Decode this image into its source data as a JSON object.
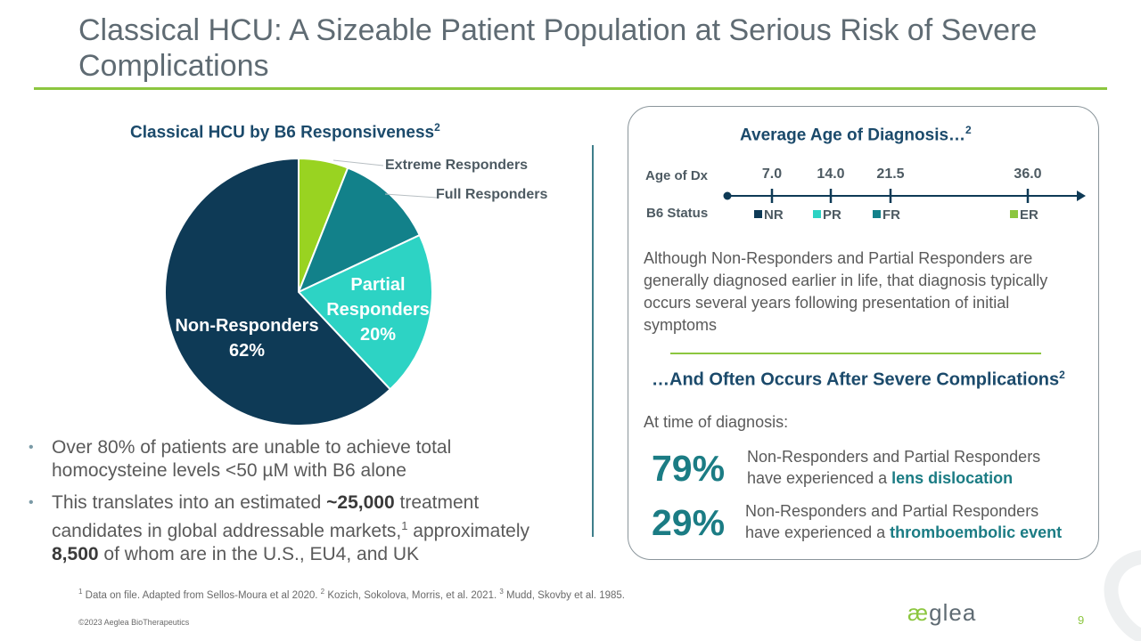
{
  "title": "Classical HCU: A Sizeable Patient Population at Serious Risk of Severe Complications",
  "pie_section": {
    "title": "Classical HCU by B6 Responsiveness",
    "title_sup": "2",
    "labels": {
      "non_responders": "Non-Responders",
      "non_responders_pct": "62%",
      "partial_responders_line1": "Partial",
      "partial_responders_line2": "Responders",
      "partial_responders_pct": "20%",
      "extreme_responders": "Extreme Responders",
      "full_responders": "Full Responders"
    }
  },
  "chart_data": {
    "type": "pie",
    "title": "Classical HCU by B6 Responsiveness",
    "categories": [
      "Extreme Responders",
      "Full Responders",
      "Partial Responders",
      "Non-Responders"
    ],
    "values": [
      6,
      12,
      20,
      62
    ],
    "colors": [
      "#99d321",
      "#12818a",
      "#2dd3c4",
      "#0e3a56"
    ],
    "start_angle_deg": 0,
    "direction": "clockwise"
  },
  "bullets": {
    "b1": "Over 80% of patients are unable to achieve total homocysteine levels <50 µM with B6 alone",
    "b2_a": "This translates into an estimated ",
    "b2_b": "~25,000",
    "b2_c": " treatment candidates in global addressable markets,",
    "b2_sup": "1",
    "b2_d": " approximately ",
    "b2_e": "8,500",
    "b2_f": " of whom are in the U.S., EU4, and UK"
  },
  "card": {
    "title": "Average Age of Diagnosis…",
    "title_sup": "2",
    "age_label": "Age of Dx",
    "status_label": "B6 Status",
    "timeline": [
      {
        "age": "7.0",
        "status": "NR",
        "color": "#0e3a56"
      },
      {
        "age": "14.0",
        "status": "PR",
        "color": "#2dd3c4"
      },
      {
        "age": "21.5",
        "status": "FR",
        "color": "#12818a"
      },
      {
        "age": "36.0",
        "status": "ER",
        "color": "#8cc63f"
      }
    ],
    "paragraph": "Although Non-Responders and Partial Responders are generally diagnosed earlier in life, that diagnosis typically occurs several years following presentation of initial symptoms",
    "sub_title": "…And Often Occurs After Severe Complications",
    "sub_title_sup": "2",
    "at_dx": "At time of diagnosis:",
    "stats": [
      {
        "value": "79%",
        "line1": "Non-Responders and Partial Responders",
        "line2_prefix": "have experienced a ",
        "highlight": "lens dislocation"
      },
      {
        "value": "29%",
        "line1": "Non-Responders and Partial Responders",
        "line2_prefix": "have experienced a ",
        "highlight": "thromboembolic event"
      }
    ]
  },
  "footer": {
    "fn1_sup": "1",
    "fn1": " Data on file. Adapted from Sellos-Moura et al 2020. ",
    "fn2_sup": "2",
    "fn2": " Kozich, Sokolova, Morris, et al. 2021. ",
    "fn3_sup": "3",
    "fn3": " Mudd, Skovby et al. 1985.",
    "copyright": "©2023 Aeglea BioTherapeutics",
    "logo_mark": "æ",
    "logo_text": "glea",
    "page_number": "9"
  },
  "accent_colors": {
    "green": "#8cc63f",
    "navy": "#1b4a6b",
    "teal": "#1b7c84"
  }
}
